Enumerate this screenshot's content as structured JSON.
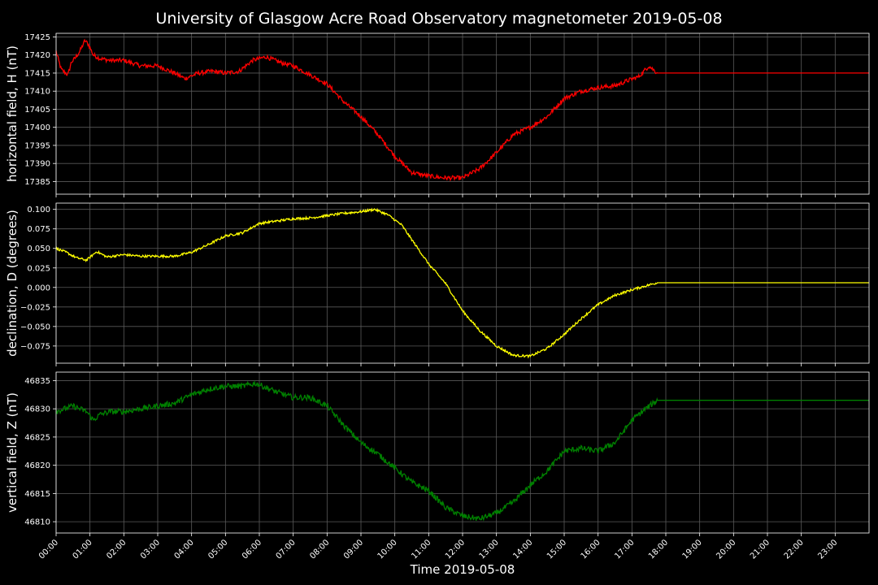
{
  "chart_data": {
    "type": "line",
    "title": "University of Glasgow Acre Road Observatory magnetometer 2019-05-08",
    "xlabel": "Time 2019-05-08",
    "x_ticks": [
      "00:00",
      "01:00",
      "02:00",
      "03:00",
      "04:00",
      "05:00",
      "06:00",
      "07:00",
      "08:00",
      "09:00",
      "10:00",
      "11:00",
      "12:00",
      "13:00",
      "14:00",
      "15:00",
      "16:00",
      "17:00",
      "18:00",
      "19:00",
      "20:00",
      "21:00",
      "22:00",
      "23:00"
    ],
    "x_range_hours": [
      0,
      24
    ],
    "grid": true,
    "data_end_hour": 17.75,
    "panels": [
      {
        "ylabel": "horizontal field, H (nT)",
        "color": "#ff0000",
        "ylim": [
          17381.5,
          17426
        ],
        "yticks": [
          17385,
          17390,
          17395,
          17400,
          17405,
          17410,
          17415,
          17420,
          17425
        ],
        "tick_labels": [
          "17385",
          "17390",
          "17395",
          "17400",
          "17405",
          "17410",
          "17415",
          "17420",
          "17425"
        ],
        "noise": 0.6,
        "x": [
          0,
          0.15,
          0.35,
          0.45,
          0.55,
          0.7,
          0.85,
          0.95,
          1.1,
          1.3,
          1.6,
          2.0,
          2.5,
          3.0,
          3.5,
          3.8,
          4.2,
          4.6,
          5.0,
          5.4,
          5.8,
          6.2,
          6.6,
          7.0,
          7.5,
          8.0,
          8.5,
          9.0,
          9.5,
          10.0,
          10.5,
          11.0,
          11.5,
          12.0,
          12.5,
          13.0,
          13.5,
          14.0,
          14.5,
          15.0,
          15.5,
          16.0,
          16.5,
          16.9,
          17.2,
          17.5,
          17.75,
          24
        ],
        "y": [
          17421,
          17416,
          17414.5,
          17418,
          17419,
          17421,
          17424,
          17423,
          17420,
          17419,
          17418.5,
          17418.5,
          17417,
          17417,
          17415,
          17413.5,
          17415,
          17415.5,
          17415,
          17415.5,
          17418.5,
          17419.5,
          17418,
          17417,
          17414.5,
          17412,
          17407,
          17403,
          17398,
          17392,
          17387.5,
          17386.5,
          17386,
          17386,
          17388.5,
          17393,
          17398,
          17400,
          17403,
          17408,
          17410,
          17411,
          17411.5,
          17413,
          17414,
          17417,
          17415,
          17415
        ]
      },
      {
        "ylabel": "declination, D (degrees)",
        "color": "#ffff00",
        "ylim": [
          -0.097,
          0.108
        ],
        "yticks": [
          -0.075,
          -0.05,
          -0.025,
          0.0,
          0.025,
          0.05,
          0.075,
          0.1
        ],
        "tick_labels": [
          "−0.075",
          "−0.050",
          "−0.025",
          "0.000",
          "0.025",
          "0.050",
          "0.075",
          "0.100"
        ],
        "noise": 0.0015,
        "x": [
          0,
          0.3,
          0.6,
          0.9,
          1.2,
          1.5,
          2.0,
          2.5,
          3.0,
          3.5,
          4.0,
          4.5,
          5.0,
          5.5,
          6.0,
          6.5,
          7.0,
          7.5,
          8.0,
          8.5,
          9.0,
          9.4,
          9.8,
          10.2,
          10.6,
          11.0,
          11.5,
          12.0,
          12.5,
          13.0,
          13.5,
          14.0,
          14.5,
          15.0,
          15.5,
          16.0,
          16.5,
          17.0,
          17.4,
          17.75,
          24
        ],
        "y": [
          0.05,
          0.045,
          0.038,
          0.035,
          0.046,
          0.039,
          0.042,
          0.04,
          0.04,
          0.04,
          0.045,
          0.055,
          0.066,
          0.07,
          0.082,
          0.085,
          0.088,
          0.089,
          0.092,
          0.095,
          0.097,
          0.1,
          0.093,
          0.08,
          0.055,
          0.03,
          0.005,
          -0.03,
          -0.055,
          -0.075,
          -0.087,
          -0.088,
          -0.078,
          -0.06,
          -0.04,
          -0.022,
          -0.01,
          -0.003,
          0.002,
          0.006,
          0.006
        ]
      },
      {
        "ylabel": "vertical field, Z (nT)",
        "color": "#008000",
        "ylim": [
          46808,
          46836.5
        ],
        "yticks": [
          46810,
          46815,
          46820,
          46825,
          46830,
          46835
        ],
        "tick_labels": [
          "46810",
          "46815",
          "46820",
          "46825",
          "46830",
          "46835"
        ],
        "noise": 0.5,
        "x": [
          0,
          0.5,
          0.9,
          1.1,
          1.3,
          1.6,
          2.0,
          2.5,
          3.0,
          3.5,
          4.0,
          4.5,
          5.0,
          5.5,
          5.9,
          6.5,
          7.0,
          7.5,
          8.0,
          8.5,
          9.0,
          9.5,
          10.0,
          10.5,
          11.0,
          11.5,
          12.0,
          12.5,
          13.0,
          13.5,
          14.0,
          14.5,
          15.0,
          15.5,
          16.0,
          16.5,
          17.0,
          17.4,
          17.75,
          24
        ],
        "y": [
          46829.5,
          46830.5,
          46829.5,
          46828,
          46829,
          46829.5,
          46829.5,
          46830,
          46830.5,
          46831,
          46832.5,
          46833.5,
          46834,
          46834,
          46834.5,
          46833,
          46832,
          46832,
          46830.5,
          46827,
          46824,
          46822,
          46819.5,
          46817,
          46815.5,
          46812.5,
          46811,
          46810.5,
          46811.5,
          46813.5,
          46816.5,
          46819,
          46822.5,
          46823,
          46822.5,
          46824,
          46828,
          46830,
          46831.5,
          46831.5
        ]
      }
    ]
  }
}
